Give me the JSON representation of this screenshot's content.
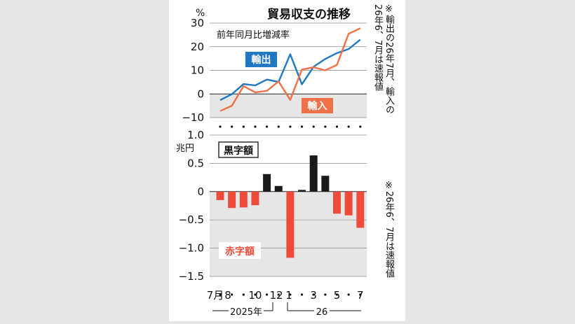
{
  "title": "貿易収支の推移",
  "note_top": "※輸出の26年7月、輸入の26年6、7月は速報値",
  "note_bottom": "※26年6、7月は速報値",
  "colors": {
    "exports": "#1f78c1",
    "imports": "#ef7148",
    "surplus": "#1a1a1a",
    "deficit": "#ee4b3a",
    "shade": "#e6e6e6"
  },
  "chart_data": [
    {
      "type": "line",
      "title": "前年同月比増減率",
      "unit": "%",
      "ylim": [
        -10,
        30
      ],
      "yticks": [
        "30",
        "20",
        "10",
        "0",
        "−10"
      ],
      "x": [
        "2025-07",
        "2025-08",
        "2025-09",
        "2025-10",
        "2025-11",
        "2025-12",
        "2026-01",
        "2026-02",
        "2026-03",
        "2026-04",
        "2026-05",
        "2026-06",
        "2026-07"
      ],
      "series": [
        {
          "name": "輸出",
          "values": [
            -2.6,
            -0.1,
            4.2,
            3.6,
            6.1,
            5.1,
            16.8,
            4.1,
            11.5,
            14.8,
            17.3,
            19.0,
            23.0
          ]
        },
        {
          "name": "輸入",
          "values": [
            -7.2,
            -5.0,
            3.3,
            0.7,
            1.3,
            5.3,
            -2.5,
            10.3,
            11.3,
            10.0,
            12.3,
            25.5,
            27.8
          ]
        }
      ]
    },
    {
      "type": "bar",
      "unit": "兆円",
      "ylim": [
        -1.5,
        1.0
      ],
      "yticks": [
        "1.0",
        "0.5",
        "0",
        "−0.5",
        "−1.0",
        "−1.5"
      ],
      "x": [
        "2025-07",
        "2025-08",
        "2025-09",
        "2025-10",
        "2025-11",
        "2025-12",
        "2026-01",
        "2026-02",
        "2026-03",
        "2026-04",
        "2026-05",
        "2026-06",
        "2026-07"
      ],
      "values": [
        -0.15,
        -0.29,
        -0.28,
        -0.24,
        0.31,
        0.1,
        -1.17,
        0.03,
        0.64,
        0.28,
        -0.39,
        -0.42,
        -0.64
      ],
      "legend": {
        "surplus": "黒字額",
        "deficit": "赤字額"
      }
    }
  ],
  "x_axis": {
    "tick_labels": [
      "7月",
      "8",
      "10",
      "12",
      "1",
      "3",
      "5",
      "7"
    ],
    "year_labels": [
      "2025年",
      "26"
    ]
  }
}
